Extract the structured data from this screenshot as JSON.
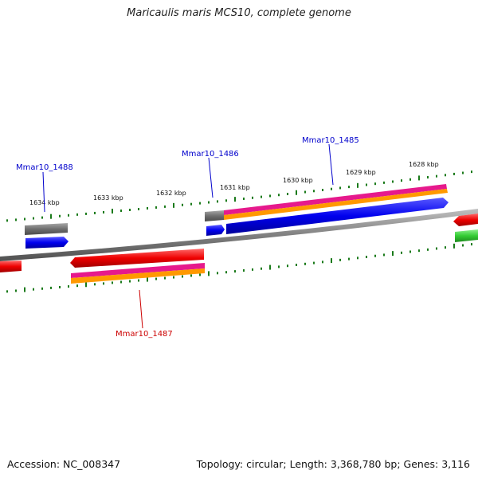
{
  "title": "Maricaulis maris MCS10, complete genome",
  "ticks": {
    "labels": [
      "1634 kbp",
      "1633 kbp",
      "1632 kbp",
      "1631 kbp",
      "1630 kbp",
      "1629 kbp",
      "1628 kbp"
    ]
  },
  "genes": [
    {
      "label": "Mmar10_1488",
      "color": "#0000cc"
    },
    {
      "label": "Mmar10_1486",
      "color": "#0000cc"
    },
    {
      "label": "Mmar10_1485",
      "color": "#0000cc"
    },
    {
      "label": "Mmar10_1487",
      "color": "#cc0000"
    }
  ],
  "colors": {
    "backbone": "#808080",
    "tick": "#1a7a1a",
    "cds_forward": "#0000ee",
    "cds_reverse": "#ee0000",
    "gene_gray": "#707070",
    "feature_pink": "#e6198c",
    "feature_orange": "#ff9900",
    "feature_green": "#33cc33"
  },
  "footer": {
    "accession": "Accession: NC_008347",
    "summary": "Topology: circular; Length: 3,368,780 bp; Genes: 3,116"
  }
}
